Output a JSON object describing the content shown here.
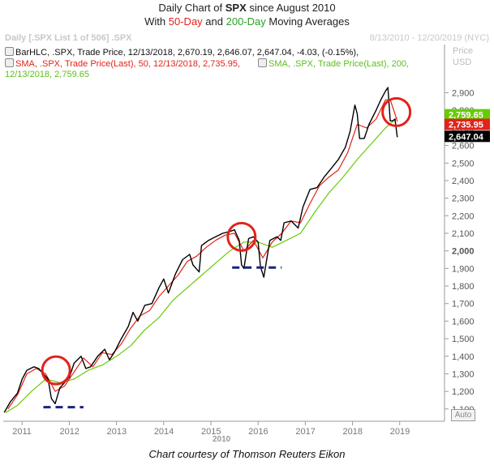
{
  "title": {
    "line1_pre": "Daily Chart of ",
    "line1_ticker": "SPX",
    "line1_post": " since August 2010",
    "line2_pre": "With ",
    "line2_ma50": "50-Day",
    "line2_mid": " and ",
    "line2_ma200": "200-Day",
    "line2_post": " Moving Averages"
  },
  "header": {
    "left": "Daily [.SPX List 1 of 506] .SPX",
    "right": "8/13/2010 - 12/20/2019 (NYC)"
  },
  "legend": {
    "bar": "BarHLC, .SPX, Trade Price, 12/13/2018, 2,670.19, 2,646.07, 2,647.04, -4.03, (-0.15%),",
    "sma50": "SMA, .SPX, Trade Price(Last), 50, 12/13/2018, 2,735.95,",
    "sma200_a": "SMA, .SPX, Trade Price(Last), 200,",
    "sma200_b": "12/13/2018, 2,759.65"
  },
  "axis": {
    "title_line1": "Price",
    "title_line2": "USD",
    "auto_button": "Auto",
    "bottom_year": "2010"
  },
  "credit": "Chart courtesy of Thomson Reuters Eikon",
  "colors": {
    "price": "#000000",
    "sma50": "#e2231a",
    "sma200": "#66cc00",
    "circle": "#e2231a",
    "support": "#1a237e"
  },
  "chart_data": {
    "type": "line",
    "title": "Daily Chart of SPX since August 2010",
    "subtitle": "With 50-Day and 200-Day Moving Averages",
    "ylabel": "Price USD",
    "xlabel": "",
    "x_ticks": [
      "2011",
      "2012",
      "2013",
      "2014",
      "2015",
      "2016",
      "2017",
      "2018",
      "2019"
    ],
    "y_ticks": [
      1100,
      1200,
      1300,
      1400,
      1500,
      1600,
      1700,
      1800,
      1900,
      2000,
      2100,
      2200,
      2300,
      2400,
      2500,
      2600,
      2700,
      2800,
      2900
    ],
    "ylim": [
      1030,
      2990
    ],
    "xlim": [
      2010.6,
      2019.95
    ],
    "grid": false,
    "series": [
      {
        "name": "BarHLC .SPX",
        "x": [
          2010.62,
          2010.75,
          2010.9,
          2011.0,
          2011.1,
          2011.25,
          2011.35,
          2011.45,
          2011.55,
          2011.62,
          2011.7,
          2011.8,
          2011.9,
          2012.0,
          2012.1,
          2012.25,
          2012.35,
          2012.45,
          2012.6,
          2012.75,
          2012.85,
          2012.95,
          2013.1,
          2013.25,
          2013.35,
          2013.45,
          2013.6,
          2013.75,
          2013.9,
          2014.0,
          2014.1,
          2014.25,
          2014.4,
          2014.55,
          2014.62,
          2014.75,
          2014.8,
          2014.95,
          2015.1,
          2015.25,
          2015.4,
          2015.5,
          2015.6,
          2015.65,
          2015.7,
          2015.8,
          2015.9,
          2016.0,
          2016.05,
          2016.12,
          2016.25,
          2016.4,
          2016.48,
          2016.55,
          2016.7,
          2016.85,
          2016.95,
          2017.1,
          2017.25,
          2017.4,
          2017.55,
          2017.7,
          2017.85,
          2017.95,
          2018.05,
          2018.1,
          2018.15,
          2018.25,
          2018.35,
          2018.5,
          2018.6,
          2018.7,
          2018.75,
          2018.8,
          2018.85,
          2018.9,
          2018.95
        ],
        "y": [
          1080,
          1140,
          1190,
          1270,
          1320,
          1340,
          1330,
          1300,
          1270,
          1160,
          1130,
          1220,
          1250,
          1280,
          1360,
          1400,
          1330,
          1340,
          1400,
          1440,
          1380,
          1420,
          1500,
          1570,
          1650,
          1600,
          1690,
          1700,
          1790,
          1840,
          1760,
          1870,
          1950,
          1980,
          1920,
          1880,
          2030,
          2060,
          2080,
          2100,
          2110,
          2120,
          2060,
          1920,
          1900,
          2070,
          2080,
          2050,
          1910,
          1850,
          2060,
          2080,
          2060,
          2160,
          2170,
          2130,
          2250,
          2350,
          2360,
          2420,
          2470,
          2520,
          2590,
          2680,
          2830,
          2780,
          2640,
          2640,
          2720,
          2800,
          2860,
          2910,
          2930,
          2740,
          2740,
          2750,
          2647
        ]
      },
      {
        "name": "SMA 50",
        "x": [
          2010.7,
          2010.9,
          2011.1,
          2011.3,
          2011.5,
          2011.7,
          2011.9,
          2012.1,
          2012.3,
          2012.5,
          2012.7,
          2012.9,
          2013.1,
          2013.3,
          2013.5,
          2013.7,
          2013.9,
          2014.1,
          2014.3,
          2014.5,
          2014.7,
          2014.9,
          2015.1,
          2015.3,
          2015.5,
          2015.7,
          2015.9,
          2016.1,
          2016.3,
          2016.5,
          2016.7,
          2016.9,
          2017.1,
          2017.3,
          2017.5,
          2017.7,
          2017.9,
          2018.1,
          2018.3,
          2018.5,
          2018.7,
          2018.8,
          2018.9,
          2018.95
        ],
        "y": [
          1100,
          1180,
          1300,
          1330,
          1300,
          1200,
          1230,
          1310,
          1390,
          1340,
          1420,
          1410,
          1470,
          1560,
          1630,
          1660,
          1740,
          1800,
          1860,
          1940,
          1970,
          2020,
          2060,
          2090,
          2100,
          2000,
          2060,
          1960,
          2050,
          2100,
          2170,
          2160,
          2270,
          2370,
          2420,
          2460,
          2560,
          2720,
          2700,
          2750,
          2860,
          2860,
          2780,
          2736
        ]
      },
      {
        "name": "SMA 200",
        "x": [
          2010.65,
          2010.9,
          2011.2,
          2011.5,
          2011.8,
          2012.1,
          2012.4,
          2012.7,
          2013.0,
          2013.3,
          2013.6,
          2013.9,
          2014.2,
          2014.5,
          2014.8,
          2015.1,
          2015.4,
          2015.7,
          2016.0,
          2016.3,
          2016.6,
          2016.9,
          2017.2,
          2017.5,
          2017.8,
          2018.1,
          2018.4,
          2018.7,
          2018.95
        ],
        "y": [
          1080,
          1120,
          1200,
          1270,
          1250,
          1270,
          1320,
          1350,
          1400,
          1460,
          1550,
          1620,
          1720,
          1790,
          1860,
          1930,
          2000,
          2050,
          2050,
          2020,
          2060,
          2100,
          2220,
          2330,
          2420,
          2520,
          2610,
          2700,
          2760
        ]
      }
    ],
    "annotations": [
      "red circles at 2011.7, 2015.65, 2018.9",
      "dashed support lines near 1110 and 1900"
    ]
  }
}
